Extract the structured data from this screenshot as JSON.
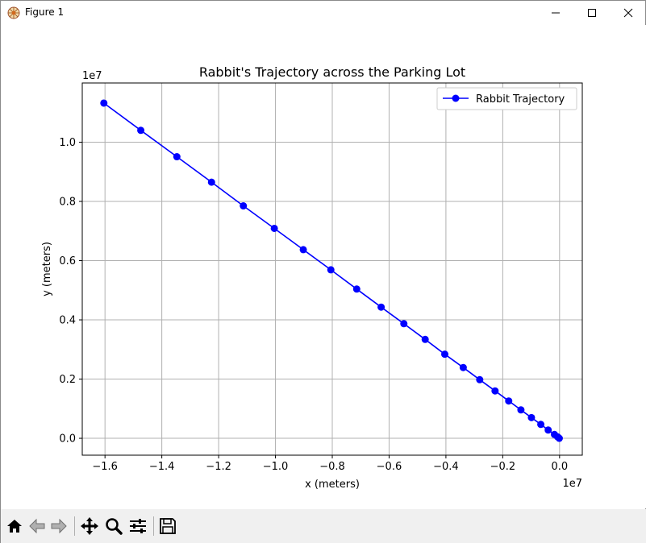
{
  "window": {
    "title": "Figure 1"
  },
  "toolbar": {
    "buttons": [
      {
        "name": "home",
        "icon": "home-icon"
      },
      {
        "name": "back",
        "icon": "back-arrow-icon"
      },
      {
        "name": "forward",
        "icon": "forward-arrow-icon"
      },
      {
        "name": "pan",
        "icon": "move-icon"
      },
      {
        "name": "zoom",
        "icon": "magnifier-icon"
      },
      {
        "name": "configure-subplots",
        "icon": "sliders-icon"
      },
      {
        "name": "save",
        "icon": "floppy-disk-icon"
      }
    ]
  },
  "chart_data": {
    "type": "line",
    "title": "Rabbit's Trajectory across the Parking Lot",
    "xlabel": "x (meters)",
    "ylabel": "y (meters)",
    "x_offset_label": "1e7",
    "y_offset_label": "1e7",
    "x_ticks": [
      -1.6,
      -1.4,
      -1.2,
      -1.0,
      -0.8,
      -0.6,
      -0.4,
      -0.2,
      0.0
    ],
    "x_tick_labels": [
      "−1.6",
      "−1.4",
      "−1.2",
      "−1.0",
      "−0.8",
      "−0.6",
      "−0.4",
      "−0.2",
      "0.0"
    ],
    "y_ticks": [
      0.0,
      0.2,
      0.4,
      0.6,
      0.8,
      1.0
    ],
    "y_tick_labels": [
      "0.0",
      "0.2",
      "0.4",
      "0.6",
      "0.8",
      "1.0"
    ],
    "xlim": [
      -1.68,
      0.08
    ],
    "ylim": [
      -0.057,
      1.2
    ],
    "grid": true,
    "legend_position": "top-right",
    "series": [
      {
        "name": "Rabbit Trajectory",
        "color": "#0000ff",
        "marker": "circle",
        "x": [
          -1.604,
          -1.474,
          -1.347,
          -1.225,
          -1.113,
          -1.004,
          -0.902,
          -0.805,
          -0.714,
          -0.628,
          -0.548,
          -0.473,
          -0.404,
          -0.339,
          -0.281,
          -0.227,
          -0.179,
          -0.136,
          -0.099,
          -0.066,
          -0.04,
          -0.018,
          -0.007,
          -0.001
        ],
        "y": [
          1.132,
          1.04,
          0.951,
          0.865,
          0.785,
          0.709,
          0.637,
          0.569,
          0.504,
          0.443,
          0.387,
          0.334,
          0.284,
          0.239,
          0.198,
          0.16,
          0.126,
          0.096,
          0.07,
          0.047,
          0.028,
          0.013,
          0.005,
          0.0
        ]
      }
    ]
  }
}
